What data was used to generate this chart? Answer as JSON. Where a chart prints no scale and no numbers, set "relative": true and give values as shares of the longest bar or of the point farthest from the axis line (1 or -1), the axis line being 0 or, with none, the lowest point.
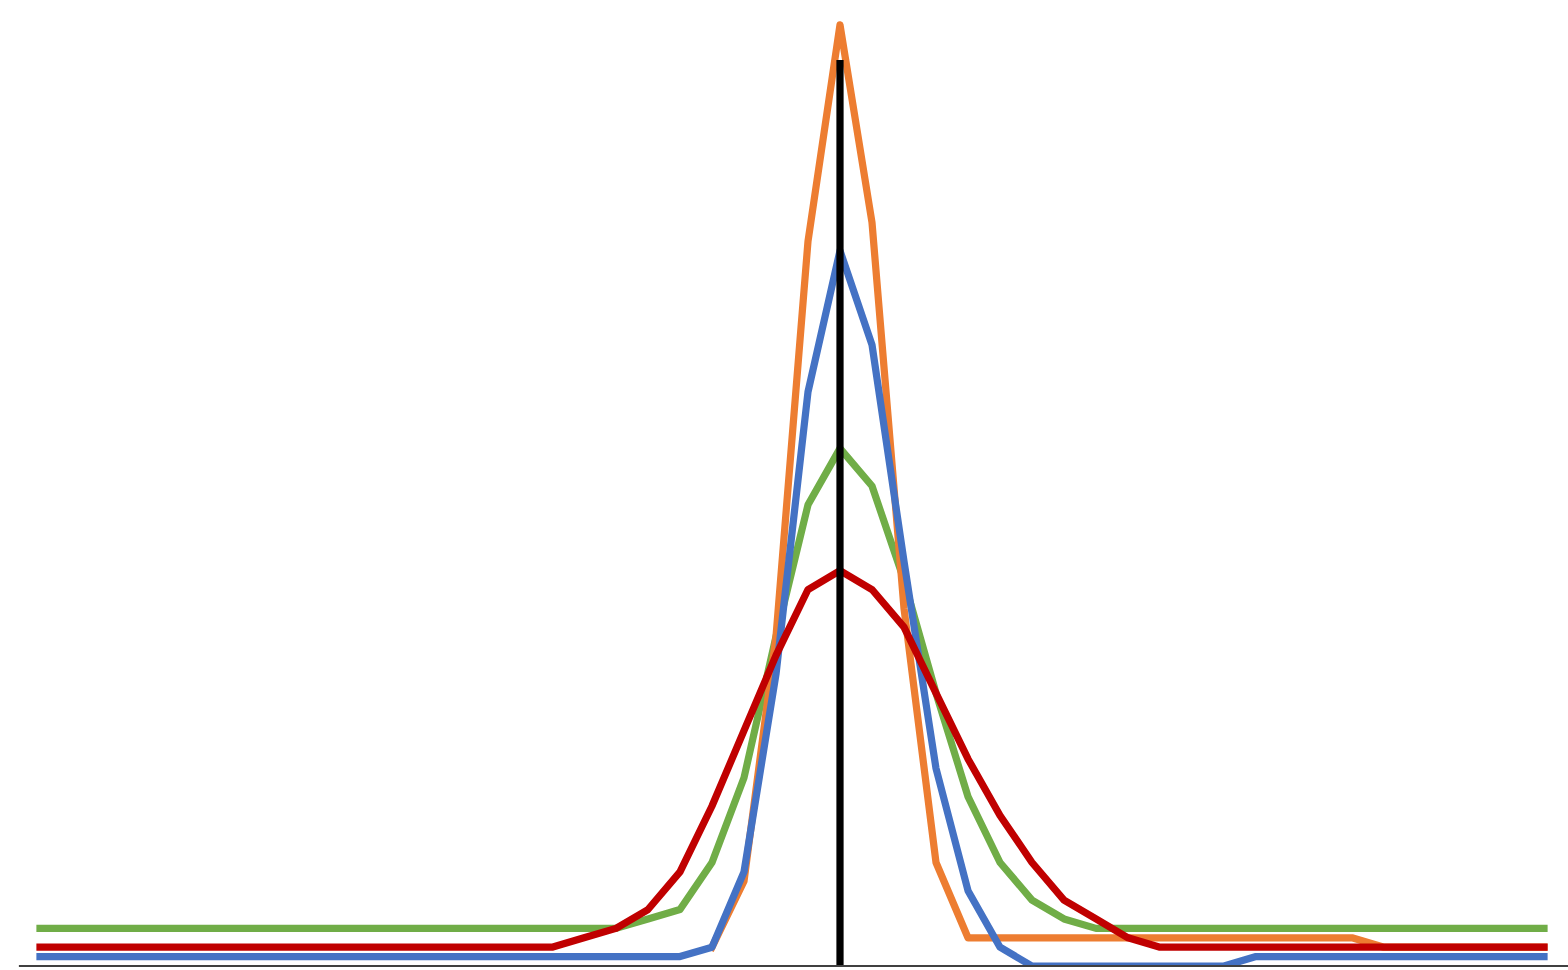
{
  "chart_data": {
    "type": "line",
    "relative": true,
    "grid": false,
    "legend": false,
    "marker": "none",
    "line_style": "solid",
    "categories": [
      null,
      null,
      null,
      null,
      null,
      null,
      null,
      null,
      null,
      null,
      null,
      null,
      null,
      null,
      null,
      null,
      null,
      null,
      null,
      null,
      null,
      null,
      null,
      null,
      null,
      null,
      null,
      null,
      null,
      null,
      null,
      null,
      null,
      null,
      null,
      null,
      null,
      null,
      null,
      null,
      null,
      null,
      null,
      null,
      null,
      null,
      null,
      null
    ],
    "series": [
      {
        "color": "#70ad47",
        "values": [
          0.04,
          0.04,
          0.04,
          0.04,
          0.04,
          0.04,
          0.04,
          0.04,
          0.04,
          0.04,
          0.04,
          0.04,
          0.04,
          0.04,
          0.04,
          0.04,
          0.04,
          0.04,
          0.04,
          0.05,
          0.06,
          0.11,
          0.2,
          0.35,
          0.49,
          0.55,
          0.51,
          0.41,
          0.29,
          0.18,
          0.11,
          0.07,
          0.05,
          0.04,
          0.04,
          0.04,
          0.04,
          0.04,
          0.04,
          0.04,
          0.04,
          0.04,
          0.04,
          0.04,
          0.04,
          0.04,
          0.04,
          0.04
        ]
      },
      {
        "color": "#ed7d31",
        "values": [
          null,
          null,
          null,
          null,
          null,
          null,
          null,
          null,
          null,
          null,
          null,
          null,
          null,
          null,
          null,
          null,
          null,
          null,
          null,
          null,
          null,
          0.02,
          0.09,
          0.35,
          0.77,
          1.0,
          0.79,
          0.38,
          0.11,
          0.03,
          0.03,
          0.03,
          0.03,
          0.03,
          0.03,
          0.03,
          0.03,
          0.03,
          0.03,
          0.03,
          0.03,
          0.03,
          0.02,
          0.02,
          0.02,
          0.02,
          0.02,
          0.02
        ]
      },
      {
        "color": "#4472c4",
        "values": [
          0.01,
          0.01,
          0.01,
          0.01,
          0.01,
          0.01,
          0.01,
          0.01,
          0.01,
          0.01,
          0.01,
          0.01,
          0.01,
          0.01,
          0.01,
          0.01,
          0.01,
          0.01,
          0.01,
          0.01,
          0.01,
          0.02,
          0.1,
          0.31,
          0.61,
          0.76,
          0.66,
          0.43,
          0.21,
          0.08,
          0.02,
          0.0,
          0.0,
          0.0,
          0.0,
          0.0,
          0.0,
          0.0,
          0.01,
          0.01,
          0.01,
          0.01,
          0.01,
          0.01,
          0.01,
          0.01,
          0.01,
          0.01
        ]
      },
      {
        "color": "#c00000",
        "values": [
          0.02,
          0.02,
          0.02,
          0.02,
          0.02,
          0.02,
          0.02,
          0.02,
          0.02,
          0.02,
          0.02,
          0.02,
          0.02,
          0.02,
          0.02,
          0.02,
          0.02,
          0.03,
          0.04,
          0.06,
          0.1,
          0.17,
          0.25,
          0.33,
          0.4,
          0.42,
          0.4,
          0.36,
          0.29,
          0.22,
          0.16,
          0.11,
          0.07,
          0.05,
          0.03,
          0.02,
          0.02,
          0.02,
          0.02,
          0.02,
          0.02,
          0.02,
          0.02,
          0.02,
          0.02,
          0.02,
          0.02,
          0.02
        ]
      }
    ]
  }
}
